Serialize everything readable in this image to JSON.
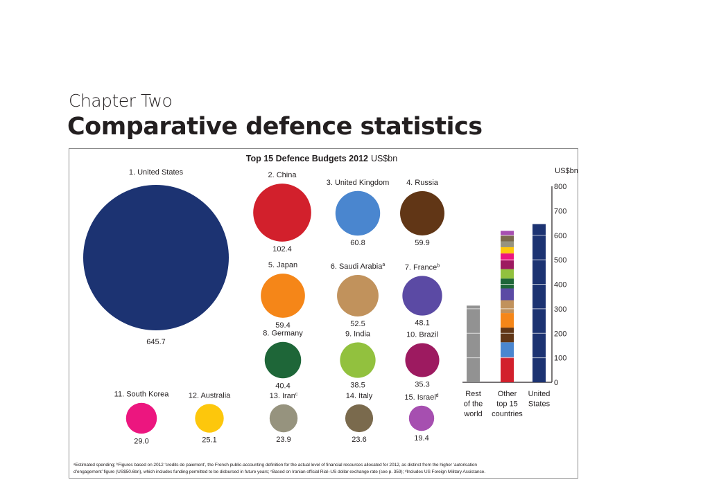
{
  "header": {
    "chapter": "Chapter Two",
    "title": "Comparative defence statistics"
  },
  "chart_data": [
    {
      "type": "bubble",
      "title": "Top 15 Defence Budgets 2012",
      "title_unit": "US$bn",
      "items": [
        {
          "rank": 1,
          "label": "1. United States",
          "value": 645.7,
          "value_label": "645.7",
          "color": "#1c3372"
        },
        {
          "rank": 2,
          "label": "2. China",
          "value": 102.4,
          "value_label": "102.4",
          "color": "#d2202c"
        },
        {
          "rank": 3,
          "label": "3. United Kingdom",
          "value": 60.8,
          "value_label": "60.8",
          "color": "#4a86cf"
        },
        {
          "rank": 4,
          "label": "4. Russia",
          "value": 59.9,
          "value_label": "59.9",
          "color": "#613616"
        },
        {
          "rank": 5,
          "label": "5. Japan",
          "value": 59.4,
          "value_label": "59.4",
          "color": "#f58618"
        },
        {
          "rank": 6,
          "label": "6. Saudi Arabia",
          "sup": "a",
          "value": 52.5,
          "value_label": "52.5",
          "color": "#c1925c"
        },
        {
          "rank": 7,
          "label": "7. France",
          "sup": "b",
          "value": 48.1,
          "value_label": "48.1",
          "color": "#5b4aa4"
        },
        {
          "rank": 8,
          "label": "8. Germany",
          "value": 40.4,
          "value_label": "40.4",
          "color": "#1e6638"
        },
        {
          "rank": 9,
          "label": "9. India",
          "value": 38.5,
          "value_label": "38.5",
          "color": "#92c13e"
        },
        {
          "rank": 10,
          "label": "10. Brazil",
          "value": 35.3,
          "value_label": "35.3",
          "color": "#9d1a60"
        },
        {
          "rank": 11,
          "label": "11. South Korea",
          "value": 29.0,
          "value_label": "29.0",
          "color": "#ec167f"
        },
        {
          "rank": 12,
          "label": "12. Australia",
          "value": 25.1,
          "value_label": "25.1",
          "color": "#fdc70c"
        },
        {
          "rank": 13,
          "label": "13. Iran",
          "sup": "c",
          "value": 23.9,
          "value_label": "23.9",
          "color": "#96937e"
        },
        {
          "rank": 14,
          "label": "14. Italy",
          "value": 23.6,
          "value_label": "23.6",
          "color": "#7a6a4d"
        },
        {
          "rank": 15,
          "label": "15. Israel",
          "sup": "d",
          "value": 19.4,
          "value_label": "19.4",
          "color": "#a64fb0"
        }
      ]
    },
    {
      "type": "stacked-bar",
      "ylabel": "US$bn",
      "ylim": [
        0,
        800
      ],
      "yticks": [
        0,
        100,
        200,
        300,
        400,
        500,
        600,
        700,
        800
      ],
      "gridlines_on_bars": [
        100,
        200,
        300,
        400,
        500,
        600
      ],
      "categories": [
        {
          "label": [
            "Rest",
            "of the",
            "world"
          ],
          "segments": [
            {
              "value": 313,
              "color": "#929292"
            }
          ]
        },
        {
          "label": [
            "Other",
            "top 15",
            "countries"
          ],
          "segments": [
            {
              "name": "China",
              "value": 102.4,
              "color": "#d2202c"
            },
            {
              "name": "United Kingdom",
              "value": 60.8,
              "color": "#4a86cf"
            },
            {
              "name": "Russia",
              "value": 59.9,
              "color": "#613616"
            },
            {
              "name": "Japan",
              "value": 59.4,
              "color": "#f58618"
            },
            {
              "name": "Saudi Arabia",
              "value": 52.5,
              "color": "#c1925c"
            },
            {
              "name": "France",
              "value": 48.1,
              "color": "#5b4aa4"
            },
            {
              "name": "Germany",
              "value": 40.4,
              "color": "#1e6638"
            },
            {
              "name": "India",
              "value": 38.5,
              "color": "#92c13e"
            },
            {
              "name": "Brazil",
              "value": 35.3,
              "color": "#9d1a60"
            },
            {
              "name": "South Korea",
              "value": 29.0,
              "color": "#ec167f"
            },
            {
              "name": "Australia",
              "value": 25.1,
              "color": "#fdc70c"
            },
            {
              "name": "Iran",
              "value": 23.9,
              "color": "#96937e"
            },
            {
              "name": "Italy",
              "value": 23.6,
              "color": "#7a6a4d"
            },
            {
              "name": "Israel",
              "value": 19.4,
              "color": "#a64fb0"
            }
          ]
        },
        {
          "label": [
            "United",
            "States"
          ],
          "segments": [
            {
              "value": 645.7,
              "color": "#1c3372"
            }
          ]
        }
      ]
    }
  ],
  "footnotes": {
    "line1": "ᵃEstimated spending; ᵇFigures based on 2012 ‘credits de paiement’, the French public-accounting definition for the actual level of financial resources allocated for 2012, as distinct from the higher ‘autorisation",
    "line2": "d’engagement’ figure (US$50.6bn), which includes funding permitted to be disbursed in future years; ᶜBased on Iranian official Rial–US dollar exchange rate (see p. 359); ᵈIncludes US Foreign Military Assistance."
  }
}
